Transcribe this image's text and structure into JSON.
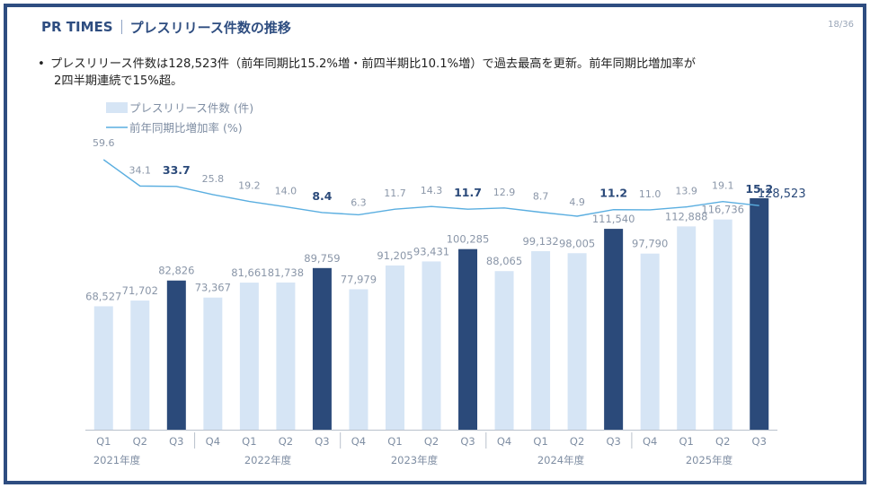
{
  "header": {
    "brand": "PR TIMES",
    "title": "プレスリリース件数の推移",
    "page": "18/36"
  },
  "bullet": {
    "line1": "プレスリリース件数は128,523件（前年同期比15.2%増・前四半期比10.1%増）で過去最高を更新。前年同期比増加率が",
    "line2": "2四半期連続で15%超。"
  },
  "colors": {
    "brand": "#2e4d80",
    "bar_light": "#d6e5f5",
    "bar_dark": "#2b4a7a",
    "line": "#5aaee0"
  },
  "chart_data": {
    "type": "bar",
    "categories": [
      "Q1",
      "Q2",
      "Q3",
      "Q4",
      "Q1",
      "Q2",
      "Q3",
      "Q4",
      "Q1",
      "Q2",
      "Q3",
      "Q4",
      "Q1",
      "Q2",
      "Q3",
      "Q4",
      "Q1",
      "Q2",
      "Q3"
    ],
    "year_labels": [
      {
        "label": "2021年度",
        "start": 0,
        "end": 2
      },
      {
        "label": "2022年度",
        "start": 3,
        "end": 6
      },
      {
        "label": "2023年度",
        "start": 7,
        "end": 10
      },
      {
        "label": "2024年度",
        "start": 11,
        "end": 14
      },
      {
        "label": "2025年度",
        "start": 15,
        "end": 18
      }
    ],
    "series": [
      {
        "name": "プレスリリース件数 (件)",
        "type": "bar",
        "values": [
          68527,
          71702,
          82826,
          73367,
          81661,
          81738,
          89759,
          77979,
          91205,
          93431,
          100285,
          88065,
          99132,
          98005,
          111540,
          97790,
          112888,
          116736,
          128523
        ],
        "labels": [
          "68,527",
          "71,702",
          "82,826",
          "73,367",
          "81,661",
          "81,738",
          "89,759",
          "77,979",
          "91,205",
          "93,431",
          "100,285",
          "88,065",
          "99,132",
          "98,005",
          "111,540",
          "97,790",
          "112,888",
          "116,736",
          "128,523"
        ],
        "highlight": [
          false,
          false,
          true,
          false,
          false,
          false,
          true,
          false,
          false,
          false,
          true,
          false,
          false,
          false,
          true,
          false,
          false,
          false,
          true
        ]
      },
      {
        "name": "前年同期比増加率 (%)",
        "type": "line",
        "values": [
          59.6,
          34.1,
          33.7,
          25.8,
          19.2,
          14.0,
          8.4,
          6.3,
          11.7,
          14.3,
          11.7,
          12.9,
          8.7,
          4.9,
          11.2,
          11.0,
          13.9,
          19.1,
          15.2
        ],
        "labels": [
          "59.6",
          "34.1",
          "33.7",
          "25.8",
          "19.2",
          "14.0",
          "8.4",
          "6.3",
          "11.7",
          "14.3",
          "11.7",
          "12.9",
          "8.7",
          "4.9",
          "11.2",
          "11.0",
          "13.9",
          "19.1",
          "15.2"
        ]
      }
    ],
    "legend_position": "top-left",
    "grid": false
  }
}
